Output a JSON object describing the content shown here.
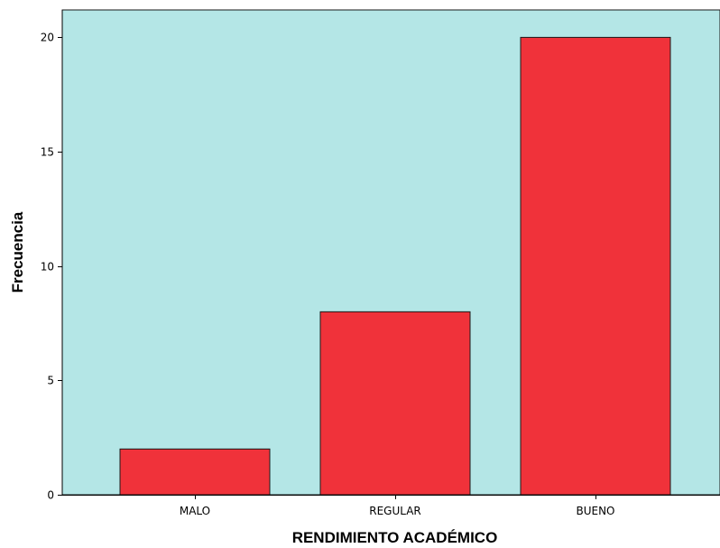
{
  "chart_data": {
    "type": "bar",
    "categories": [
      "MALO",
      "REGULAR",
      "BUENO"
    ],
    "values": [
      2,
      8,
      20
    ],
    "xlabel": "RENDIMIENTO ACADÉMICO",
    "ylabel": "Frecuencia",
    "ylim": [
      0,
      21.2
    ],
    "yticks": [
      "0",
      "5",
      "10",
      "15",
      "20"
    ],
    "ytick_values": [
      0,
      5,
      10,
      15,
      20
    ],
    "grid": false,
    "colors": {
      "plot_background": "#b4e6e6",
      "bar_fill": "#f0323a",
      "bar_stroke": "#1a1a1a"
    }
  }
}
